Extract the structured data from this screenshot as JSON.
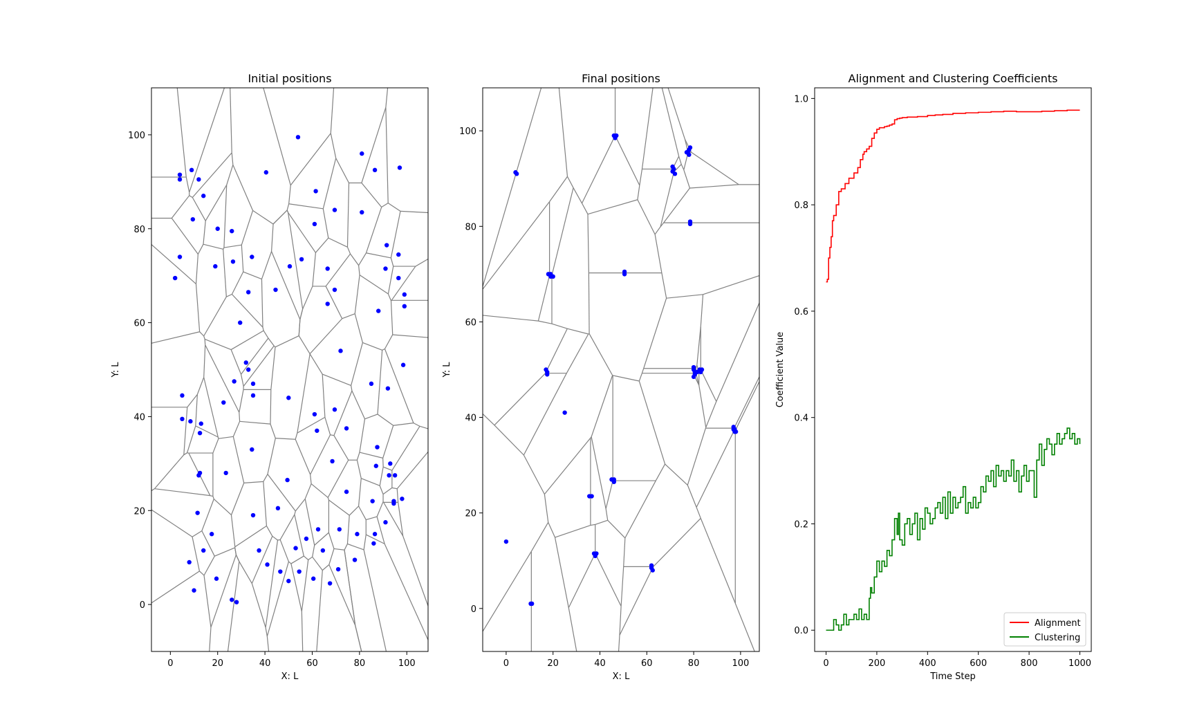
{
  "chart_data": [
    {
      "type": "scatter",
      "title": "Initial positions",
      "xlabel": "X: L",
      "ylabel": "Y: L",
      "xlim": [
        -8,
        109
      ],
      "ylim": [
        -10,
        110
      ],
      "xticks": [
        0,
        20,
        40,
        60,
        80,
        100
      ],
      "yticks": [
        0,
        20,
        40,
        60,
        80,
        100
      ],
      "grid": false,
      "marker_color": "#0000ff",
      "edge_color": "#808080",
      "overlay": "voronoi",
      "points": [
        [
          4,
          91.5
        ],
        [
          4,
          90.5
        ],
        [
          9,
          92.5
        ],
        [
          12,
          90.5
        ],
        [
          14,
          87
        ],
        [
          9.5,
          82
        ],
        [
          20,
          80
        ],
        [
          26,
          79.5
        ],
        [
          4,
          74
        ],
        [
          2,
          69.5
        ],
        [
          19,
          72
        ],
        [
          26.5,
          73
        ],
        [
          34.5,
          74
        ],
        [
          40.5,
          92
        ],
        [
          54,
          99.5
        ],
        [
          61.5,
          88
        ],
        [
          61,
          81
        ],
        [
          69.5,
          84
        ],
        [
          81,
          96
        ],
        [
          86.5,
          92.5
        ],
        [
          97,
          93
        ],
        [
          81,
          83.5
        ],
        [
          91.5,
          76.5
        ],
        [
          96.5,
          74.5
        ],
        [
          66.5,
          71.5
        ],
        [
          55.5,
          73.5
        ],
        [
          50.5,
          72
        ],
        [
          91,
          71.5
        ],
        [
          96.5,
          69.5
        ],
        [
          99,
          66
        ],
        [
          33,
          66.5
        ],
        [
          44.5,
          67
        ],
        [
          66.5,
          64
        ],
        [
          69.5,
          67
        ],
        [
          88,
          62.5
        ],
        [
          99,
          63.5
        ],
        [
          29.5,
          60
        ],
        [
          72,
          54
        ],
        [
          32,
          51.5
        ],
        [
          33,
          50
        ],
        [
          27,
          47.5
        ],
        [
          35,
          47
        ],
        [
          35,
          44.5
        ],
        [
          50,
          44
        ],
        [
          85,
          47
        ],
        [
          92,
          46
        ],
        [
          98.5,
          51
        ],
        [
          22.5,
          43
        ],
        [
          5,
          44.5
        ],
        [
          5,
          39.5
        ],
        [
          8.5,
          39
        ],
        [
          13,
          38.5
        ],
        [
          12.5,
          36.5
        ],
        [
          69.5,
          41.5
        ],
        [
          61,
          40.5
        ],
        [
          62,
          37
        ],
        [
          74.5,
          37.5
        ],
        [
          34.5,
          33
        ],
        [
          87.5,
          33.5
        ],
        [
          68.5,
          30.5
        ],
        [
          87,
          29.5
        ],
        [
          93,
          30
        ],
        [
          95,
          27.5
        ],
        [
          12,
          27.5
        ],
        [
          12.5,
          28
        ],
        [
          23.5,
          28
        ],
        [
          92.5,
          27.5
        ],
        [
          49.5,
          26.5
        ],
        [
          74.5,
          24
        ],
        [
          85.5,
          22
        ],
        [
          94.5,
          22
        ],
        [
          94.5,
          21.5
        ],
        [
          98,
          22.5
        ],
        [
          11.5,
          19.5
        ],
        [
          35,
          19
        ],
        [
          45.5,
          20.5
        ],
        [
          91,
          17.5
        ],
        [
          17.5,
          15
        ],
        [
          14,
          11.5
        ],
        [
          62.5,
          16
        ],
        [
          71.5,
          16
        ],
        [
          79,
          15
        ],
        [
          86.5,
          15
        ],
        [
          57.5,
          14
        ],
        [
          8,
          9
        ],
        [
          37.5,
          11.5
        ],
        [
          53,
          12
        ],
        [
          41,
          8.5
        ],
        [
          64.5,
          11.5
        ],
        [
          78,
          9.5
        ],
        [
          86,
          13
        ],
        [
          46.5,
          7
        ],
        [
          50,
          5
        ],
        [
          54.5,
          7
        ],
        [
          60.5,
          5.5
        ],
        [
          67.5,
          4.5
        ],
        [
          71,
          7.5
        ],
        [
          10,
          3
        ],
        [
          19.5,
          5.5
        ],
        [
          26,
          1
        ],
        [
          28,
          0.5
        ]
      ]
    },
    {
      "type": "scatter",
      "title": "Final positions",
      "xlabel": "X: L",
      "ylabel": "Y: L",
      "xlim": [
        -10,
        108
      ],
      "ylim": [
        -9,
        109
      ],
      "xticks": [
        0,
        20,
        40,
        60,
        80,
        100
      ],
      "yticks": [
        0,
        20,
        40,
        60,
        80,
        100
      ],
      "grid": false,
      "marker_color": "#0000ff",
      "edge_color": "#808080",
      "overlay": "voronoi",
      "points": [
        [
          4,
          91.3
        ],
        [
          4.5,
          91
        ],
        [
          46,
          99
        ],
        [
          46.5,
          98.5
        ],
        [
          47,
          99
        ],
        [
          71,
          92.5
        ],
        [
          71.5,
          92
        ],
        [
          71,
          91.5
        ],
        [
          72,
          91
        ],
        [
          77,
          95.5
        ],
        [
          78,
          96
        ],
        [
          78,
          95
        ],
        [
          77.5,
          95.5
        ],
        [
          78.5,
          96.5
        ],
        [
          78.5,
          81
        ],
        [
          78.5,
          80.5
        ],
        [
          18,
          70
        ],
        [
          19,
          70
        ],
        [
          19,
          69.5
        ],
        [
          20,
          69.5
        ],
        [
          50.5,
          70.5
        ],
        [
          50.5,
          70
        ],
        [
          17,
          50
        ],
        [
          17.5,
          49.5
        ],
        [
          17.5,
          49
        ],
        [
          80,
          50.5
        ],
        [
          80,
          50
        ],
        [
          80.5,
          49.5
        ],
        [
          80.5,
          49
        ],
        [
          81.5,
          49.5
        ],
        [
          82.5,
          50
        ],
        [
          83,
          49.5
        ],
        [
          83.5,
          50
        ],
        [
          80,
          48.5
        ],
        [
          25,
          41
        ],
        [
          97,
          38
        ],
        [
          97.5,
          37.5
        ],
        [
          98,
          37
        ],
        [
          97.5,
          37
        ],
        [
          97,
          37.5
        ],
        [
          45,
          27
        ],
        [
          46,
          27
        ],
        [
          46,
          26.5
        ],
        [
          35.5,
          23.5
        ],
        [
          36.5,
          23.5
        ],
        [
          37.5,
          11.5
        ],
        [
          38,
          11
        ],
        [
          38.5,
          11.5
        ],
        [
          62,
          9
        ],
        [
          62,
          8.5
        ],
        [
          62.5,
          8
        ],
        [
          10.5,
          1
        ],
        [
          11,
          1
        ],
        [
          0,
          14
        ]
      ]
    },
    {
      "type": "line",
      "title": "Alignment and Clustering Coefficients",
      "xlabel": "Time Step",
      "ylabel": "Coefficient Value",
      "xlim": [
        -45,
        1045
      ],
      "ylim": [
        -0.04,
        1.02
      ],
      "xticks": [
        0,
        200,
        400,
        600,
        800,
        1000
      ],
      "yticks": [
        0.0,
        0.2,
        0.4,
        0.6,
        0.8,
        1.0
      ],
      "legend_position": "lower-right",
      "grid": false,
      "series": [
        {
          "name": "Alignment",
          "color": "#ff0000",
          "x": [
            0,
            5,
            10,
            15,
            20,
            25,
            30,
            40,
            50,
            60,
            75,
            90,
            110,
            125,
            135,
            145,
            150,
            160,
            170,
            180,
            190,
            200,
            210,
            220,
            230,
            240,
            250,
            260,
            270,
            280,
            290,
            300,
            320,
            340,
            360,
            380,
            400,
            430,
            460,
            500,
            550,
            600,
            650,
            700,
            750,
            800,
            850,
            900,
            950,
            1000
          ],
          "y": [
            0.655,
            0.66,
            0.7,
            0.72,
            0.74,
            0.77,
            0.78,
            0.8,
            0.825,
            0.83,
            0.84,
            0.85,
            0.86,
            0.87,
            0.885,
            0.895,
            0.9,
            0.905,
            0.91,
            0.925,
            0.935,
            0.942,
            0.945,
            0.945,
            0.947,
            0.948,
            0.95,
            0.952,
            0.96,
            0.962,
            0.963,
            0.964,
            0.965,
            0.965,
            0.966,
            0.966,
            0.968,
            0.969,
            0.97,
            0.972,
            0.973,
            0.974,
            0.975,
            0.976,
            0.975,
            0.975,
            0.976,
            0.977,
            0.978,
            0.978
          ]
        },
        {
          "name": "Clustering",
          "color": "#008000",
          "x": [
            0,
            20,
            30,
            40,
            50,
            60,
            70,
            80,
            90,
            100,
            110,
            120,
            130,
            140,
            150,
            160,
            170,
            175,
            180,
            190,
            200,
            210,
            220,
            230,
            240,
            250,
            260,
            270,
            280,
            285,
            290,
            300,
            310,
            320,
            330,
            340,
            350,
            360,
            370,
            380,
            390,
            400,
            410,
            420,
            430,
            440,
            450,
            460,
            470,
            480,
            490,
            500,
            510,
            520,
            530,
            540,
            550,
            560,
            570,
            580,
            590,
            600,
            610,
            620,
            630,
            640,
            650,
            660,
            670,
            680,
            690,
            700,
            710,
            720,
            730,
            740,
            750,
            760,
            770,
            780,
            790,
            800,
            810,
            820,
            830,
            840,
            850,
            860,
            870,
            880,
            890,
            900,
            910,
            920,
            930,
            940,
            950,
            960,
            970,
            980,
            990,
            1000
          ],
          "y": [
            0.0,
            0.0,
            0.02,
            0.01,
            0.0,
            0.01,
            0.03,
            0.01,
            0.02,
            0.02,
            0.03,
            0.02,
            0.04,
            0.02,
            0.03,
            0.02,
            0.06,
            0.08,
            0.07,
            0.1,
            0.13,
            0.11,
            0.13,
            0.12,
            0.15,
            0.14,
            0.17,
            0.21,
            0.18,
            0.22,
            0.17,
            0.16,
            0.2,
            0.21,
            0.18,
            0.2,
            0.22,
            0.17,
            0.21,
            0.19,
            0.23,
            0.22,
            0.2,
            0.21,
            0.23,
            0.24,
            0.22,
            0.25,
            0.21,
            0.26,
            0.22,
            0.25,
            0.23,
            0.24,
            0.25,
            0.27,
            0.22,
            0.24,
            0.23,
            0.25,
            0.23,
            0.24,
            0.27,
            0.26,
            0.29,
            0.28,
            0.3,
            0.27,
            0.31,
            0.29,
            0.3,
            0.28,
            0.3,
            0.29,
            0.32,
            0.28,
            0.3,
            0.26,
            0.29,
            0.31,
            0.28,
            0.3,
            0.3,
            0.25,
            0.32,
            0.35,
            0.31,
            0.34,
            0.36,
            0.35,
            0.33,
            0.35,
            0.37,
            0.35,
            0.36,
            0.37,
            0.38,
            0.36,
            0.37,
            0.35,
            0.36,
            0.35
          ]
        }
      ]
    }
  ]
}
